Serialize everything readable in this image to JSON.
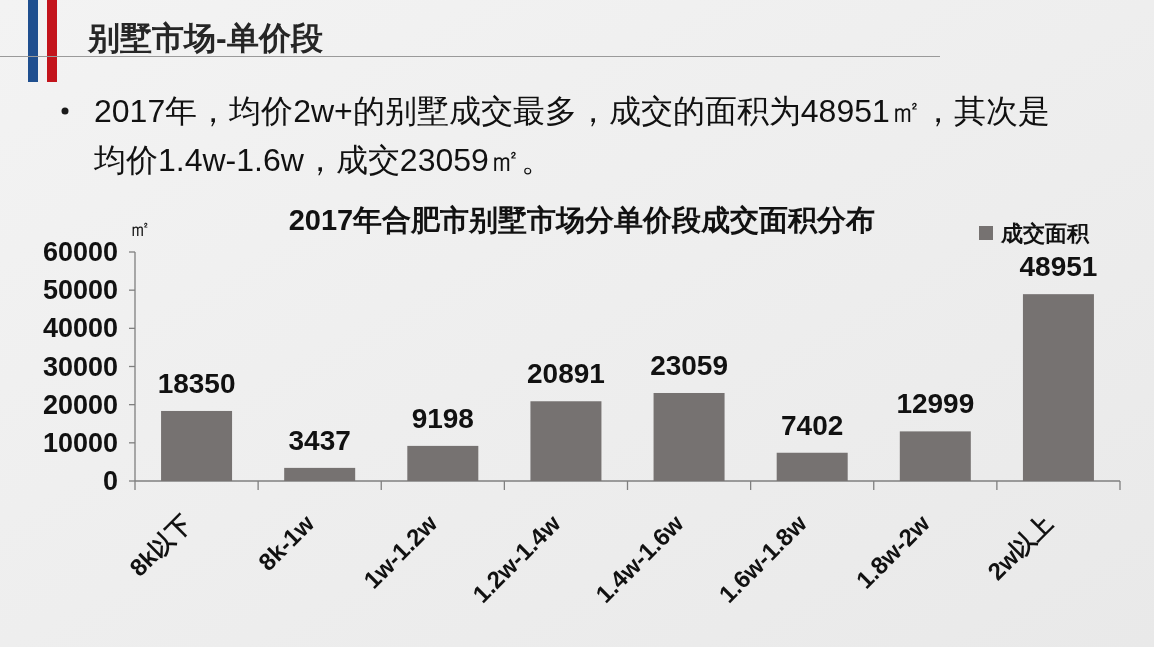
{
  "chart_data": {
    "type": "bar",
    "title": "2017年合肥市别墅市场分单价段成交面积分布",
    "ylabel": "㎡",
    "categories": [
      "8k以下",
      "8k-1w",
      "1w-1.2w",
      "1.2w-1.4w",
      "1.4w-1.6w",
      "1.6w-1.8w",
      "1.8w-2w",
      "2w以上"
    ],
    "series": [
      {
        "name": "成交面积",
        "color": "#767271",
        "values": [
          18350,
          3437,
          9198,
          20891,
          23059,
          7402,
          12999,
          48951
        ]
      }
    ],
    "ylim": [
      0,
      60000
    ],
    "yticks": [
      0,
      10000,
      20000,
      30000,
      40000,
      50000,
      60000
    ],
    "data_labels": true,
    "legend": "top right",
    "annotations": [
      "别墅市场-单价段",
      "2017年，均价2w+的别墅成交最多，成交的面积为48951㎡，其次是均价1.4w-1.6w，成交23059㎡。"
    ]
  }
}
